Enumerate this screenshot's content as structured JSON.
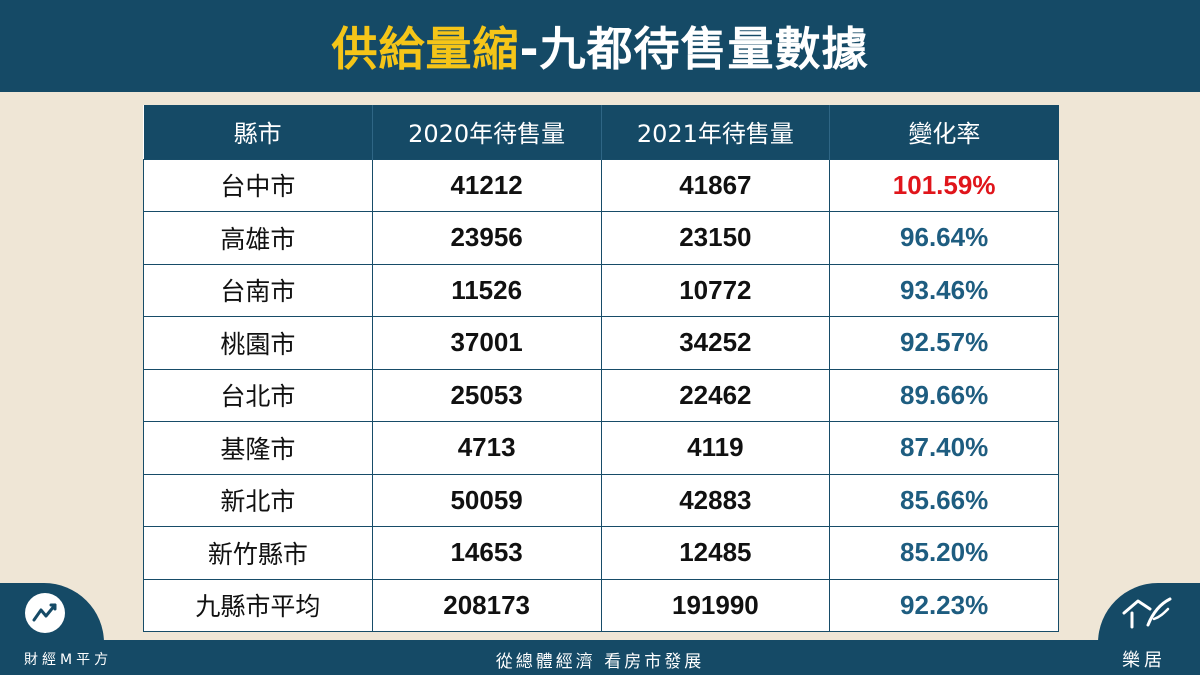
{
  "header": {
    "title_accent": "供給量縮",
    "title_rest": "-九都待售量數據"
  },
  "table": {
    "columns": [
      "縣市",
      "2020年待售量",
      "2021年待售量",
      "變化率"
    ],
    "rows": [
      {
        "city": "台中市",
        "v2020": "41212",
        "v2021": "41867",
        "rate": "101.59%"
      },
      {
        "city": "高雄市",
        "v2020": "23956",
        "v2021": "23150",
        "rate": "96.64%"
      },
      {
        "city": "台南市",
        "v2020": "11526",
        "v2021": "10772",
        "rate": "93.46%"
      },
      {
        "city": "桃園市",
        "v2020": "37001",
        "v2021": "34252",
        "rate": "92.57%"
      },
      {
        "city": "台北市",
        "v2020": "25053",
        "v2021": "22462",
        "rate": "89.66%"
      },
      {
        "city": "基隆市",
        "v2020": "4713",
        "v2021": "4119",
        "rate": "87.40%"
      },
      {
        "city": "新北市",
        "v2020": "50059",
        "v2021": "42883",
        "rate": "85.66%"
      },
      {
        "city": "新竹縣市",
        "v2020": "14653",
        "v2021": "12485",
        "rate": "85.20%"
      },
      {
        "city": "九縣市平均",
        "v2020": "208173",
        "v2021": "191990",
        "rate": "92.23%"
      }
    ]
  },
  "footer": {
    "brand_left": "財經M平方",
    "slogan": "從總體經濟 看房市發展",
    "brand_right": "樂居"
  },
  "colors": {
    "navy": "#154a66",
    "accent_yellow": "#f5c518",
    "rate_up_red": "#e0151b",
    "rate_blue": "#1e5d80",
    "background": "#efe6d6"
  },
  "icons": {
    "left_logo": "rising-chart-icon",
    "right_logo": "house-pen-logo-icon"
  }
}
